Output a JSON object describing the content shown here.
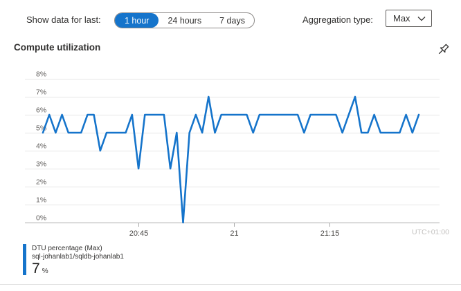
{
  "toolbar": {
    "show_data_label": "Show data for last:",
    "time_ranges": [
      {
        "label": "1 hour",
        "selected": true
      },
      {
        "label": "24 hours",
        "selected": false
      },
      {
        "label": "7 days",
        "selected": false
      }
    ],
    "aggregation_label": "Aggregation type:",
    "aggregation_value": "Max"
  },
  "chart": {
    "title": "Compute utilization",
    "utc_label": "UTC+01:00"
  },
  "chart_data": {
    "type": "line",
    "title": "Compute utilization",
    "x_start": "20:30",
    "x_interval_minutes": 1,
    "x_ticks": [
      {
        "label": "20:45",
        "index": 15
      },
      {
        "label": "21",
        "index": 30
      },
      {
        "label": "21:15",
        "index": 45
      }
    ],
    "ylim": [
      0,
      8
    ],
    "y_unit": "%",
    "y_tick_labels": [
      "0%",
      "1%",
      "2%",
      "3%",
      "4%",
      "5%",
      "6%",
      "7%",
      "8%"
    ],
    "grid": true,
    "legend_position": "bottom-left",
    "line_color": "#1574cb",
    "series": [
      {
        "name": "DTU percentage (Max)",
        "resource": "sql-johanlab1/sqldb-johanlab1",
        "values": [
          5,
          6,
          5,
          6,
          5,
          5,
          5,
          6,
          6,
          4,
          5,
          5,
          5,
          5,
          6,
          3,
          6,
          6,
          6,
          6,
          3,
          5,
          0,
          5,
          6,
          5,
          7,
          5,
          6,
          6,
          6,
          6,
          6,
          5,
          6,
          6,
          6,
          6,
          6,
          6,
          6,
          5,
          6,
          6,
          6,
          6,
          6,
          5,
          6,
          7,
          5,
          5,
          6,
          5,
          5,
          5,
          5,
          6,
          5,
          6
        ]
      }
    ]
  },
  "legend": {
    "series_name": "DTU percentage (Max)",
    "resource_name": "sql-johanlab1/sqldb-johanlab1",
    "current_value": "7",
    "current_unit": "%"
  },
  "colors": {
    "accent": "#1574cb",
    "gridline": "#e6e6e6",
    "axis": "#a8a8a8",
    "y_label": "#605e5c",
    "x_label": "#484644",
    "utc_label": "#c2c0be",
    "text": "#323130",
    "divider": "#e1e1e1"
  }
}
